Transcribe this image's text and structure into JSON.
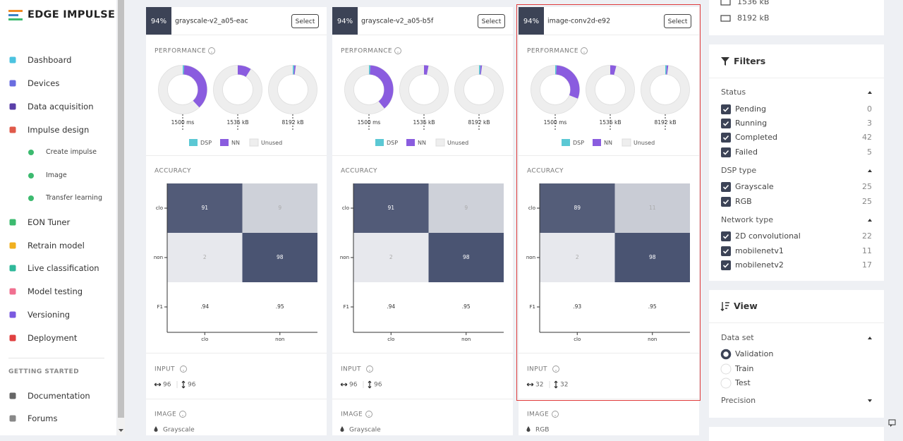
{
  "sidebar": {
    "logo": "EDGE IMPULSE",
    "nav": [
      "Dashboard",
      "Devices",
      "Data acquisition",
      "Impulse design"
    ],
    "sub": [
      "Create impulse",
      "Image",
      "Transfer learning"
    ],
    "nav2": [
      "EON Tuner",
      "Retrain model",
      "Live classification",
      "Model testing",
      "Versioning",
      "Deployment"
    ],
    "section": "GETTING STARTED",
    "links": [
      "Documentation",
      "Forums"
    ]
  },
  "cards": [
    {
      "score": "94%",
      "name": "grayscale-v2_a05-eac",
      "button": "Select",
      "performance": "PERFORMANCE",
      "donuts": [
        {
          "label": "1500 ms",
          "dsp": 1,
          "nn": 37
        },
        {
          "label": "1536 kB",
          "dsp": 0,
          "nn": 9
        },
        {
          "label": "8192 kB",
          "dsp": 1,
          "nn": 1
        }
      ],
      "legend": [
        "DSP",
        "NN",
        "Unused"
      ],
      "accuracy": "ACCURACY",
      "rows": [
        "clo",
        "non",
        "F1"
      ],
      "cols": [
        "clo",
        "non"
      ],
      "matrix": [
        [
          91,
          9
        ],
        [
          2,
          98
        ]
      ],
      "f1": [
        ".94",
        ".95"
      ],
      "input": "INPUT",
      "input_w": "96",
      "input_h": "96",
      "image": "IMAGE",
      "image_type": "Grayscale"
    },
    {
      "score": "94%",
      "name": "grayscale-v2_a05-b5f",
      "button": "Select",
      "performance": "PERFORMANCE",
      "donuts": [
        {
          "label": "1500 ms",
          "dsp": 1,
          "nn": 38
        },
        {
          "label": "1536 kB",
          "dsp": 0,
          "nn": 3
        },
        {
          "label": "8192 kB",
          "dsp": 1,
          "nn": 1
        }
      ],
      "legend": [
        "DSP",
        "NN",
        "Unused"
      ],
      "accuracy": "ACCURACY",
      "rows": [
        "clo",
        "non",
        "F1"
      ],
      "cols": [
        "clo",
        "non"
      ],
      "matrix": [
        [
          91,
          9
        ],
        [
          2,
          98
        ]
      ],
      "f1": [
        ".94",
        ".95"
      ],
      "input": "INPUT",
      "input_w": "96",
      "input_h": "96",
      "image": "IMAGE",
      "image_type": "Grayscale"
    },
    {
      "score": "94%",
      "name": "image-conv2d-e92",
      "button": "Select",
      "performance": "PERFORMANCE",
      "donuts": [
        {
          "label": "1500 ms",
          "dsp": 1,
          "nn": 30
        },
        {
          "label": "1536 kB",
          "dsp": 0,
          "nn": 4
        },
        {
          "label": "8192 kB",
          "dsp": 1,
          "nn": 1
        }
      ],
      "legend": [
        "DSP",
        "NN",
        "Unused"
      ],
      "accuracy": "ACCURACY",
      "rows": [
        "clo",
        "non",
        "F1"
      ],
      "cols": [
        "clo",
        "non"
      ],
      "matrix": [
        [
          89,
          11
        ],
        [
          2,
          98
        ]
      ],
      "f1": [
        ".93",
        ".95"
      ],
      "input": "INPUT",
      "input_w": "32",
      "input_h": "32",
      "image": "IMAGE",
      "image_type": "RGB"
    }
  ],
  "panel": {
    "top": [
      "1536 kB",
      "8192 kB"
    ],
    "filters": {
      "title": "Filters",
      "groups": [
        {
          "name": "Status",
          "items": [
            {
              "label": "Pending",
              "count": 0
            },
            {
              "label": "Running",
              "count": 3
            },
            {
              "label": "Completed",
              "count": 42
            },
            {
              "label": "Failed",
              "count": 5
            }
          ]
        },
        {
          "name": "DSP type",
          "items": [
            {
              "label": "Grayscale",
              "count": 25
            },
            {
              "label": "RGB",
              "count": 25
            }
          ]
        },
        {
          "name": "Network type",
          "items": [
            {
              "label": "2D convolutional",
              "count": 22
            },
            {
              "label": "mobilenetv1",
              "count": 11
            },
            {
              "label": "mobilenetv2",
              "count": 17
            }
          ]
        }
      ]
    },
    "view": {
      "title": "View",
      "group": "Data set",
      "options": [
        "Validation",
        "Train",
        "Test"
      ],
      "selected": 0,
      "precision": "Precision"
    }
  }
}
